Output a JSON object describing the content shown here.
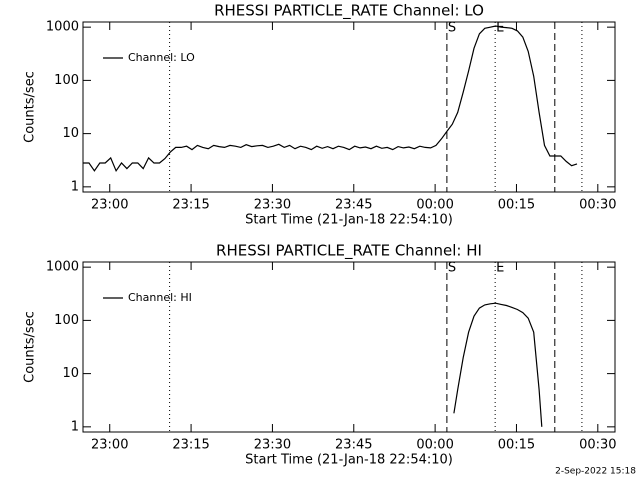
{
  "chart_data": [
    {
      "type": "line",
      "title": "RHESSI PARTICLE_RATE Channel: LO",
      "ylabel": "Counts/sec",
      "xlabel": "Start Time (21-Jan-18 22:54:10)",
      "log_y": true,
      "legend": "upper left",
      "xlim": [
        0.9,
        99
      ],
      "ylim": [
        0.8,
        1250
      ],
      "xticks": [
        {
          "value": 5.83,
          "label": "23:00"
        },
        {
          "value": 20.83,
          "label": "23:15"
        },
        {
          "value": 35.83,
          "label": "23:30"
        },
        {
          "value": 50.83,
          "label": "23:45"
        },
        {
          "value": 65.83,
          "label": "00:00"
        },
        {
          "value": 80.83,
          "label": "00:15"
        },
        {
          "value": 95.83,
          "label": "00:30"
        }
      ],
      "yticks": [
        1,
        10,
        100,
        1000
      ],
      "markers": [
        {
          "x": 16.87,
          "style": "dotted"
        },
        {
          "x": 68.0,
          "style": "dashed"
        },
        {
          "x": 76.9,
          "style": "dotted"
        },
        {
          "x": 87.9,
          "style": "dashed"
        },
        {
          "x": 92.9,
          "style": "dotted"
        }
      ],
      "flags": [
        {
          "label": "S",
          "x": 68.0
        },
        {
          "label": "E",
          "x": 76.9
        }
      ],
      "x": [
        1,
        2,
        3,
        4,
        5,
        6,
        7,
        8,
        9,
        10,
        11,
        12,
        13,
        14,
        15,
        16,
        17,
        18,
        19,
        20,
        21,
        22,
        23,
        24,
        25,
        26,
        27,
        28,
        29,
        30,
        31,
        32,
        33,
        34,
        35,
        36,
        37,
        38,
        39,
        40,
        41,
        42,
        43,
        44,
        45,
        46,
        47,
        48,
        49,
        50,
        51,
        52,
        53,
        54,
        55,
        56,
        57,
        58,
        59,
        60,
        61,
        62,
        63,
        64,
        65,
        66,
        67,
        68,
        69,
        70,
        71,
        72,
        73,
        74,
        75,
        76,
        77,
        78,
        79,
        80,
        81,
        82,
        83,
        84,
        85,
        86,
        87,
        88,
        89,
        90,
        91,
        92
      ],
      "series": [
        {
          "name": "Channel: LO",
          "color": "#000000",
          "values": [
            2.8,
            2.8,
            2,
            2.8,
            2.8,
            3.5,
            2,
            2.8,
            2.2,
            2.8,
            2.8,
            2.2,
            3.5,
            2.8,
            2.8,
            3.4,
            4.5,
            5.5,
            5.5,
            5.8,
            5,
            6,
            5.5,
            5.2,
            6,
            5.7,
            5.5,
            6,
            5.8,
            5.5,
            6.2,
            5.7,
            5.9,
            6,
            5.5,
            5.8,
            6.3,
            5.5,
            6,
            5.2,
            5.8,
            5.5,
            5,
            5.8,
            5.3,
            5.7,
            5.2,
            5.8,
            5.5,
            5,
            5.8,
            5.4,
            5.6,
            5.2,
            5.8,
            5.3,
            5.5,
            5,
            5.7,
            5.4,
            5.6,
            5.2,
            5.8,
            5.5,
            5.4,
            6,
            8,
            11,
            15,
            25,
            60,
            150,
            400,
            750,
            950,
            1000,
            1050,
            1000,
            980,
            950,
            850,
            650,
            350,
            120,
            25,
            6,
            3.8,
            3.8,
            3.8,
            3,
            2.5,
            2.7
          ]
        }
      ]
    },
    {
      "type": "line",
      "title": "RHESSI PARTICLE_RATE Channel: HI",
      "ylabel": "Counts/sec",
      "xlabel": "Start Time (21-Jan-18 22:54:10)",
      "log_y": true,
      "legend": "upper left",
      "xlim": [
        0.9,
        99
      ],
      "ylim": [
        0.8,
        1250
      ],
      "xticks": [
        {
          "value": 5.83,
          "label": "23:00"
        },
        {
          "value": 20.83,
          "label": "23:15"
        },
        {
          "value": 35.83,
          "label": "23:30"
        },
        {
          "value": 50.83,
          "label": "23:45"
        },
        {
          "value": 65.83,
          "label": "00:00"
        },
        {
          "value": 80.83,
          "label": "00:15"
        },
        {
          "value": 95.83,
          "label": "00:30"
        }
      ],
      "yticks": [
        1,
        10,
        100,
        1000
      ],
      "markers": [
        {
          "x": 16.87,
          "style": "dotted"
        },
        {
          "x": 68.0,
          "style": "dashed"
        },
        {
          "x": 76.9,
          "style": "dotted"
        },
        {
          "x": 87.9,
          "style": "dashed"
        },
        {
          "x": 92.9,
          "style": "dotted"
        }
      ],
      "flags": [
        {
          "label": "S",
          "x": 68.0
        },
        {
          "label": "E",
          "x": 76.9
        }
      ],
      "x": [
        69.3,
        70,
        71,
        72,
        73,
        74,
        75,
        76,
        77,
        78,
        79,
        80,
        81,
        82,
        83,
        84,
        85,
        85.5
      ],
      "series": [
        {
          "name": "Channel: HI",
          "color": "#000000",
          "values": [
            1.8,
            5,
            20,
            60,
            120,
            170,
            195,
            205,
            210,
            200,
            190,
            175,
            160,
            140,
            110,
            60,
            5,
            1
          ]
        }
      ]
    }
  ],
  "footer": "2-Sep-2022 15:18"
}
